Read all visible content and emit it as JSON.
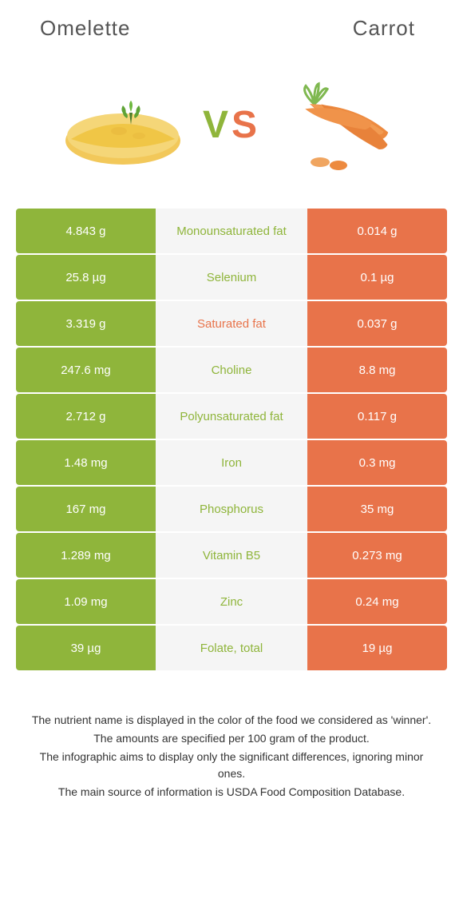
{
  "header": {
    "left_title": "Omelette",
    "right_title": "Carrot"
  },
  "vs": {
    "v": "V",
    "s": "S"
  },
  "colors": {
    "left_bg": "#8fb53b",
    "right_bg": "#e8734a",
    "mid_bg": "#f5f5f5",
    "winner_left": "#8fb53b",
    "winner_right": "#e8734a",
    "neutral_text": "#888888"
  },
  "rows": [
    {
      "left": "4.843 g",
      "label": "Monounsaturated fat",
      "right": "0.014 g",
      "winner": "left"
    },
    {
      "left": "25.8 µg",
      "label": "Selenium",
      "right": "0.1 µg",
      "winner": "left"
    },
    {
      "left": "3.319 g",
      "label": "Saturated fat",
      "right": "0.037 g",
      "winner": "right"
    },
    {
      "left": "247.6 mg",
      "label": "Choline",
      "right": "8.8 mg",
      "winner": "left"
    },
    {
      "left": "2.712 g",
      "label": "Polyunsaturated fat",
      "right": "0.117 g",
      "winner": "left"
    },
    {
      "left": "1.48 mg",
      "label": "Iron",
      "right": "0.3 mg",
      "winner": "left"
    },
    {
      "left": "167 mg",
      "label": "Phosphorus",
      "right": "35 mg",
      "winner": "left"
    },
    {
      "left": "1.289 mg",
      "label": "Vitamin B5",
      "right": "0.273 mg",
      "winner": "left"
    },
    {
      "left": "1.09 mg",
      "label": "Zinc",
      "right": "0.24 mg",
      "winner": "left"
    },
    {
      "left": "39 µg",
      "label": "Folate, total",
      "right": "19 µg",
      "winner": "left"
    }
  ],
  "footer": {
    "line1": "The nutrient name is displayed in the color of the food we considered as 'winner'.",
    "line2": "The amounts are specified per 100 gram of the product.",
    "line3": "The infographic aims to display only the significant differences, ignoring minor ones.",
    "line4": "The main source of information is USDA Food Composition Database."
  }
}
